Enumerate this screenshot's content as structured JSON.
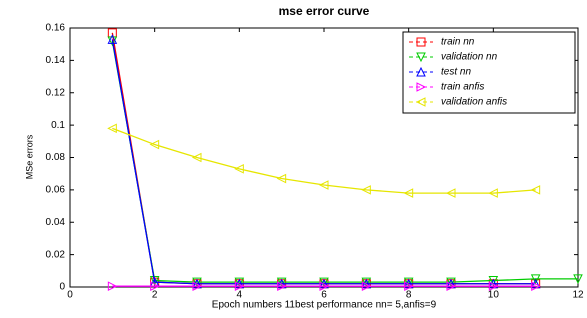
{
  "chart_data": {
    "type": "line",
    "title": "mse error curve",
    "x_label": "Epoch numbers 11best performance nn= 5,anfis=9",
    "y_label": "MSe errors",
    "x": [
      1,
      2,
      3,
      4,
      5,
      6,
      7,
      8,
      9,
      10,
      11,
      12
    ],
    "series": [
      {
        "name": "train nn",
        "color": "#ff0000",
        "marker": "square",
        "values": [
          0.157,
          0.003,
          0.002,
          0.002,
          0.002,
          0.002,
          0.002,
          0.002,
          0.002,
          0.002,
          0.002,
          null
        ]
      },
      {
        "name": "validation nn",
        "color": "#00cc00",
        "marker": "down",
        "values": [
          0.152,
          0.004,
          0.003,
          0.003,
          0.003,
          0.003,
          0.003,
          0.003,
          0.003,
          0.004,
          0.005,
          0.005
        ]
      },
      {
        "name": "test nn",
        "color": "#0000ff",
        "marker": "up",
        "values": [
          0.153,
          0.003,
          0.002,
          0.002,
          0.002,
          0.002,
          0.002,
          0.002,
          0.002,
          0.002,
          0.002,
          null
        ]
      },
      {
        "name": "train anfis",
        "color": "#ff00ff",
        "marker": "right",
        "values": [
          0.0005,
          0.0005,
          0.0005,
          0.0005,
          0.0005,
          0.0005,
          0.0005,
          0.0005,
          0.0005,
          0.0005,
          0.0005,
          null
        ]
      },
      {
        "name": "validation anfis",
        "color": "#e6e600",
        "marker": "left",
        "values": [
          0.098,
          0.088,
          0.08,
          0.073,
          0.067,
          0.063,
          0.06,
          0.058,
          0.058,
          0.058,
          0.06,
          null
        ]
      }
    ],
    "xlim": [
      0,
      12
    ],
    "xticks": [
      0,
      2,
      4,
      6,
      8,
      10,
      12
    ],
    "ylim": [
      0,
      0.16
    ],
    "yticks": [
      0,
      0.02,
      0.04,
      0.06,
      0.08,
      0.1,
      0.12,
      0.14,
      0.16
    ],
    "legend": "upper right"
  }
}
